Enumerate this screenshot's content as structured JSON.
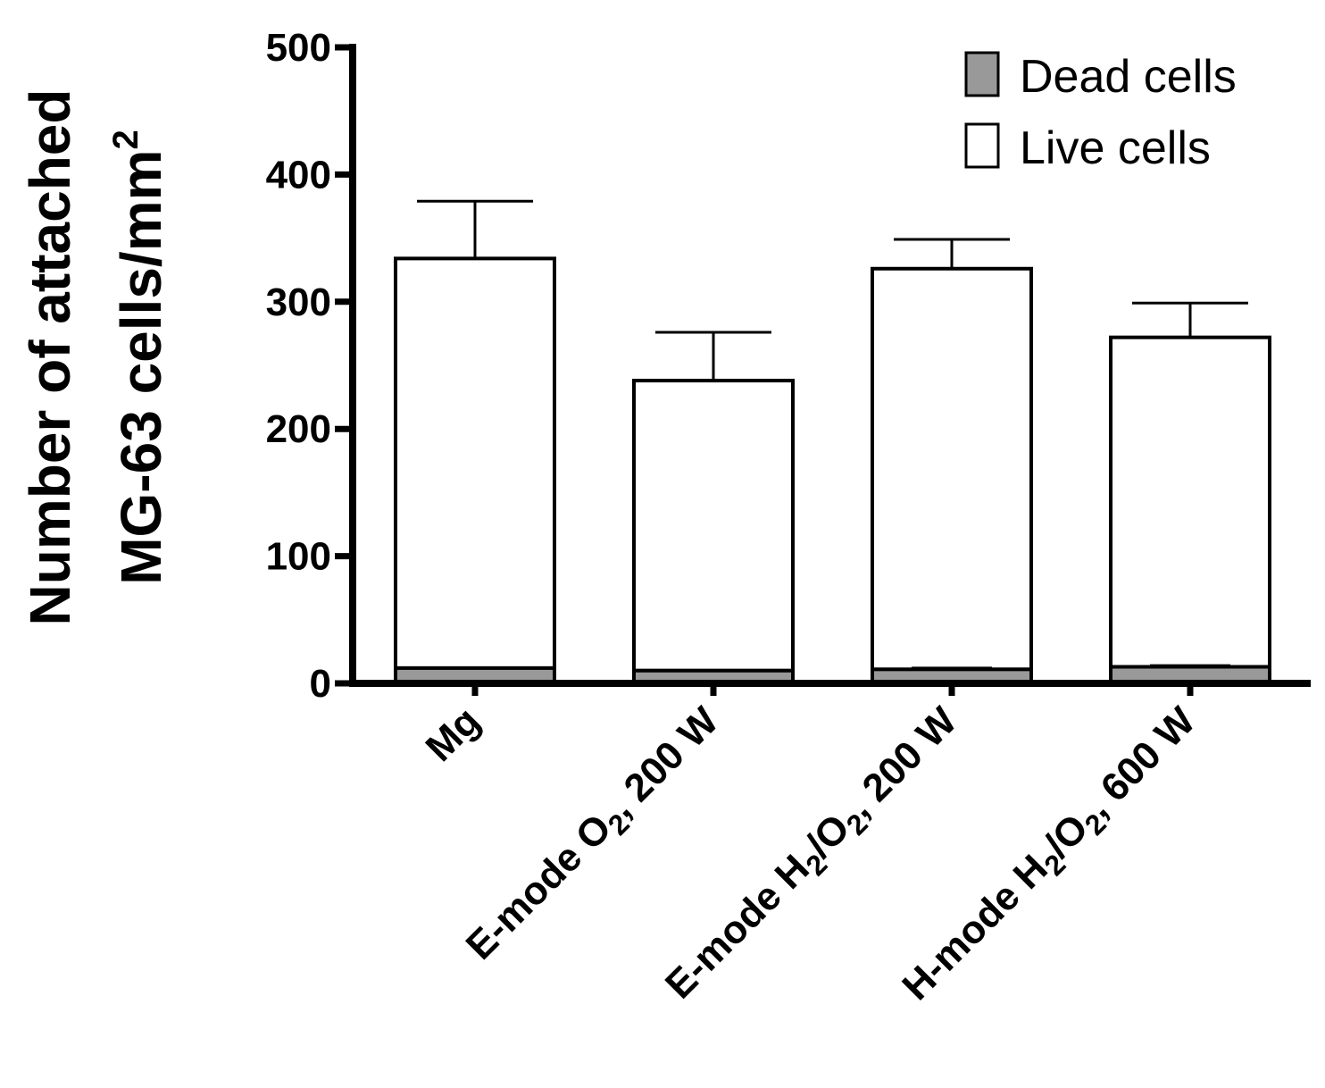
{
  "chart_data": {
    "type": "bar",
    "stacked": true,
    "title": "",
    "xlabel": "",
    "ylabel": {
      "line1": "Number of attached",
      "line2_main": "MG-63 cells/mm",
      "line2_sup": "2"
    },
    "ylim": [
      0,
      500
    ],
    "yticks": [
      "0",
      "100",
      "200",
      "300",
      "400",
      "500"
    ],
    "categories": [
      {
        "parts": [
          {
            "t": "Mg",
            "s": null
          }
        ]
      },
      {
        "parts": [
          {
            "t": "E-mode O",
            "s": null
          },
          {
            "t": "2",
            "s": "sub"
          },
          {
            "t": ", 200 W",
            "s": null
          }
        ]
      },
      {
        "parts": [
          {
            "t": "E-mode H",
            "s": null
          },
          {
            "t": "2",
            "s": "sub"
          },
          {
            "t": "/O",
            "s": null
          },
          {
            "t": "2",
            "s": "sub"
          },
          {
            "t": ", 200 W",
            "s": null
          }
        ]
      },
      {
        "parts": [
          {
            "t": "H-mode H",
            "s": null
          },
          {
            "t": "2",
            "s": "sub"
          },
          {
            "t": "/O",
            "s": null
          },
          {
            "t": "2",
            "s": "sub"
          },
          {
            "t": ", 600 W",
            "s": null
          }
        ]
      }
    ],
    "series": [
      {
        "name": "Dead cells",
        "color": "#999999",
        "values": [
          12,
          10,
          11,
          13
        ],
        "errors": [
          0,
          0,
          1,
          1
        ]
      },
      {
        "name": "Live cells",
        "color": "#ffffff",
        "values": [
          322,
          228,
          315,
          259
        ],
        "errors": [
          45,
          38,
          23,
          27
        ]
      }
    ],
    "legend": {
      "position": "top-right",
      "items": [
        "Dead cells",
        "Live cells"
      ]
    }
  }
}
